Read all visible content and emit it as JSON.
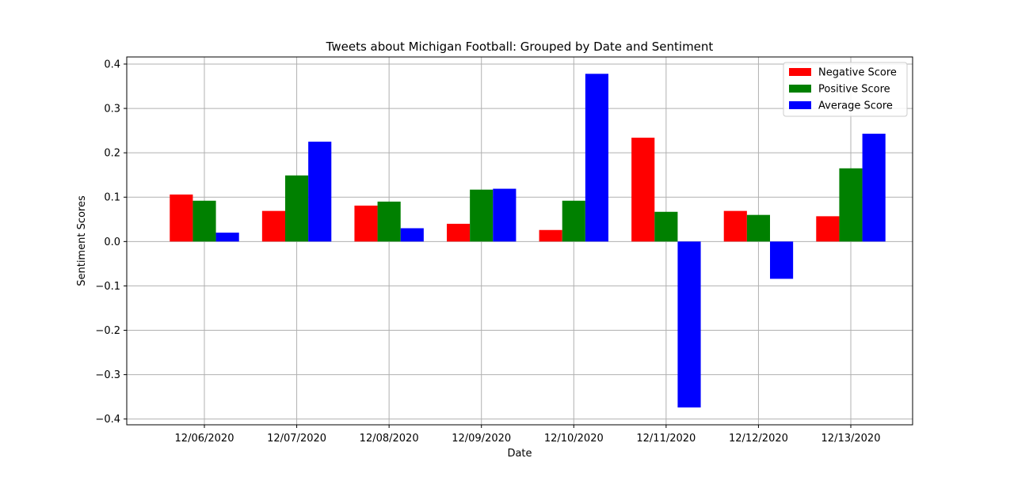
{
  "chart_data": {
    "type": "bar",
    "title": "Tweets about Michigan Football: Grouped by Date and Sentiment",
    "xlabel": "Date",
    "ylabel": "Sentiment Scores",
    "categories": [
      "12/06/2020",
      "12/07/2020",
      "12/08/2020",
      "12/09/2020",
      "12/10/2020",
      "12/11/2020",
      "12/12/2020",
      "12/13/2020"
    ],
    "series": [
      {
        "name": "Negative Score",
        "color": "#ff0000",
        "values": [
          0.106,
          0.069,
          0.081,
          0.04,
          0.026,
          0.234,
          0.069,
          0.057
        ]
      },
      {
        "name": "Positive Score",
        "color": "#008000",
        "values": [
          0.092,
          0.149,
          0.09,
          0.117,
          0.092,
          0.067,
          0.06,
          0.165
        ]
      },
      {
        "name": "Average Score",
        "color": "#0000ff",
        "values": [
          0.02,
          0.225,
          0.03,
          0.119,
          0.378,
          -0.374,
          -0.084,
          0.243
        ]
      }
    ],
    "ylim": [
      -0.413,
      0.416
    ],
    "yticks": [
      -0.4,
      -0.3,
      -0.2,
      -0.1,
      0.0,
      0.1,
      0.2,
      0.3,
      0.4
    ],
    "ytick_labels": [
      "−0.4",
      "−0.3",
      "−0.2",
      "−0.1",
      "0.0",
      "0.1",
      "0.2",
      "0.3",
      "0.4"
    ],
    "grid": true,
    "legend_position": "top-right"
  }
}
